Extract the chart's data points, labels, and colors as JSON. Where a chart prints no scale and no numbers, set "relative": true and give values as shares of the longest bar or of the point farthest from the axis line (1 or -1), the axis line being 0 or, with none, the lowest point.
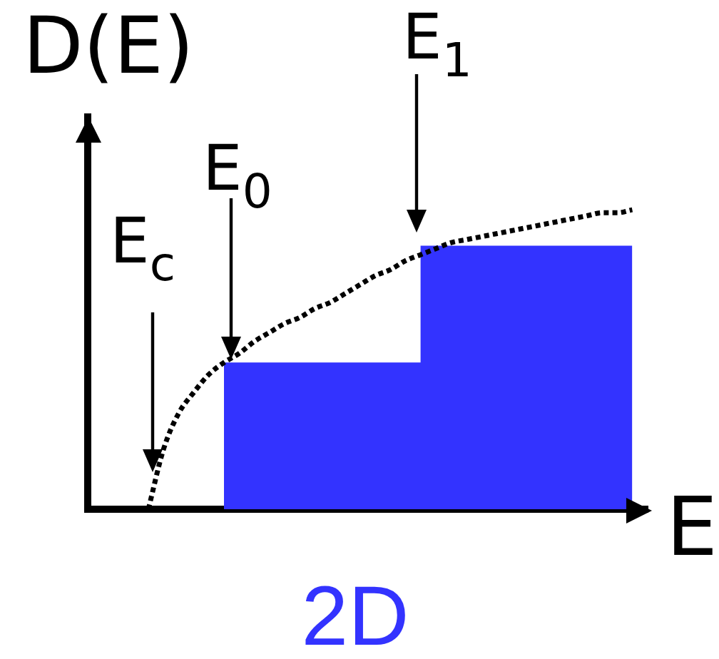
{
  "chart_data": {
    "type": "area",
    "title": "2D",
    "xlabel": "E",
    "ylabel": "D(E)",
    "relative": true,
    "annotations": [
      "E$_{c}$",
      "E$_{0}$",
      "E$_{1}$"
    ],
    "categories": [
      null,
      null,
      null,
      null,
      null,
      null,
      null,
      null,
      null,
      null,
      null,
      null,
      null,
      null,
      null,
      null,
      null,
      null,
      null,
      null,
      null,
      null,
      null,
      null,
      null,
      null,
      null,
      null,
      null,
      null,
      null,
      null,
      null,
      null,
      null,
      null,
      null,
      null
    ],
    "series": [
      {
        "color": "#3333ff",
        "values": [
          null,
          null,
          null,
          null,
          null,
          null,
          null,
          null,
          null,
          0.49,
          0.49,
          0.49,
          0.49,
          0.49,
          0.49,
          0.49,
          0.49,
          0.49,
          0.49,
          0.49,
          0.49,
          0.49,
          0.88,
          0.88,
          0.88,
          0.88,
          0.88,
          0.88,
          0.88,
          0.88,
          0.88,
          0.88,
          0.88,
          0.88,
          0.88,
          0.88,
          0.88,
          null
        ]
      },
      {
        "type": "line",
        "color": "#000000",
        "line_style": "dotted",
        "values": [
          null,
          null,
          null,
          null,
          0,
          0.2,
          0.32,
          0.39,
          0.45,
          0.49,
          0.52,
          0.56,
          0.59,
          0.62,
          0.64,
          0.67,
          0.69,
          0.72,
          0.75,
          0.78,
          0.8,
          0.83,
          0.85,
          0.87,
          0.89,
          0.9,
          0.91,
          0.92,
          0.93,
          0.94,
          0.95,
          0.96,
          0.97,
          0.98,
          0.99,
          0.99,
          1,
          null
        ]
      }
    ]
  }
}
